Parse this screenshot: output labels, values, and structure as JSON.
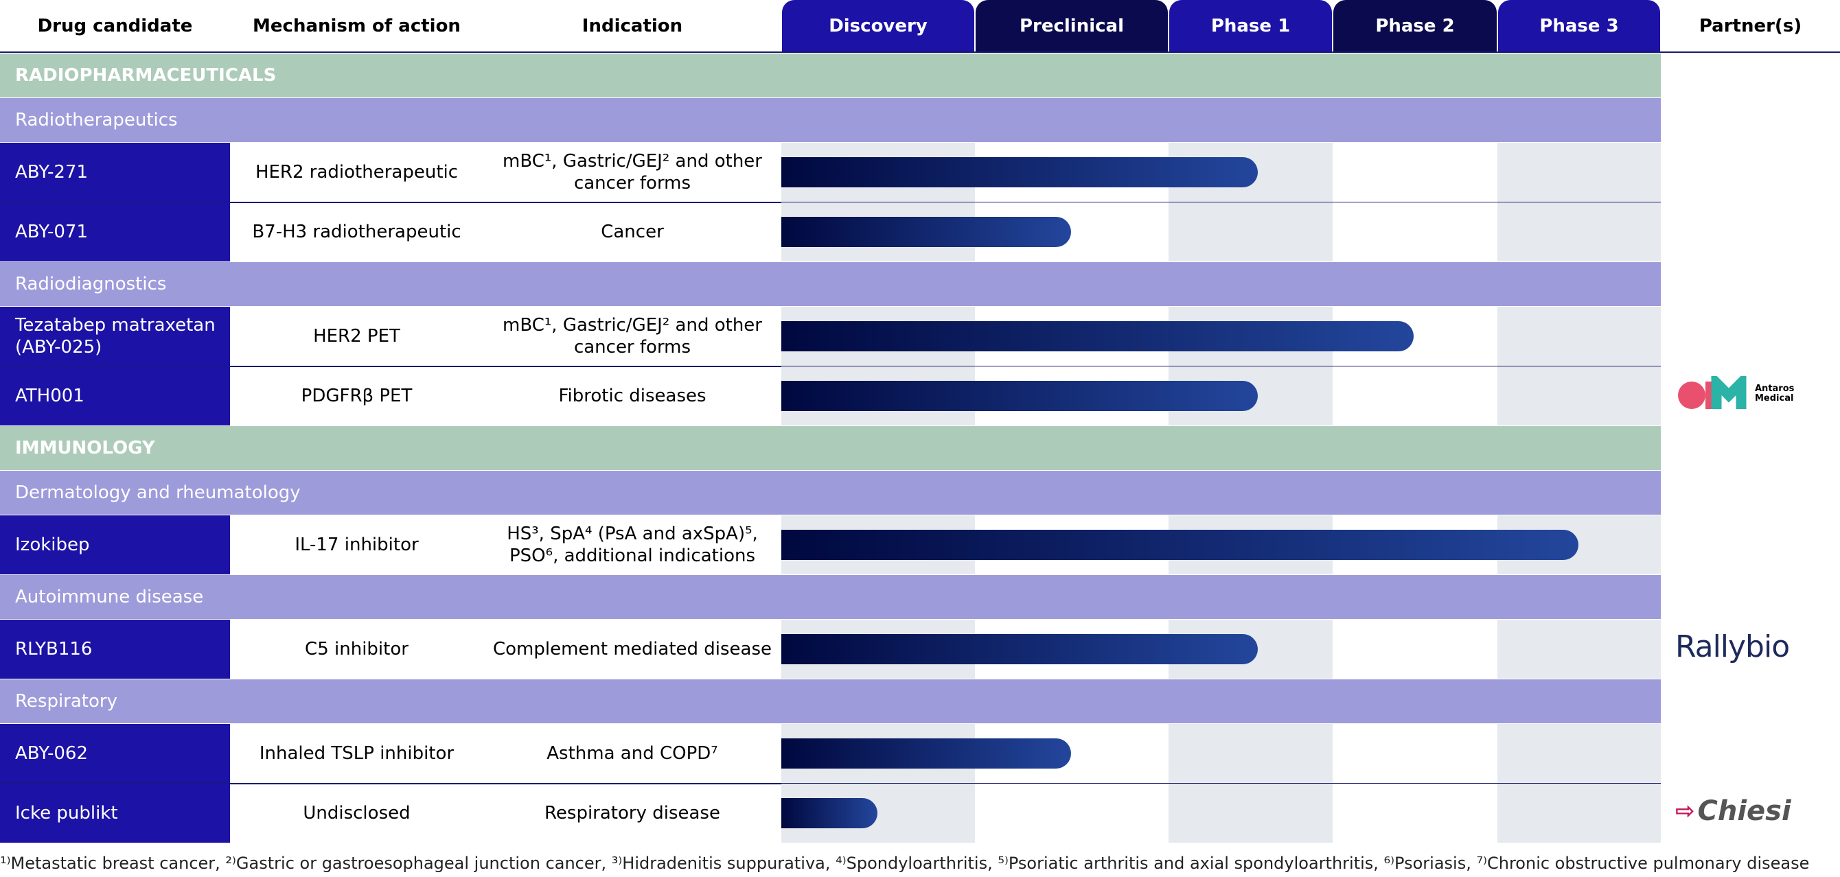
{
  "header": {
    "columns": [
      "Drug candidate",
      "Mechanism of action",
      "Indication",
      "Discovery",
      "Preclinical",
      "Phase 1",
      "Phase 2",
      "Phase 3",
      "Partner(s)"
    ]
  },
  "rows": [
    {
      "kind": "section",
      "label": "RADIOPHARMACEUTICALS"
    },
    {
      "kind": "group",
      "label": "Radiotherapeutics"
    },
    {
      "kind": "drug",
      "candidate": "ABY-271",
      "mechanism": "HER2 radiotherapeutic",
      "indication": "mBC¹, Gastric/GEJ² and other cancer forms"
    },
    {
      "kind": "drug",
      "candidate": "ABY-071",
      "mechanism": "B7-H3 radiotherapeutic",
      "indication": "Cancer"
    },
    {
      "kind": "group",
      "label": "Radiodiagnostics"
    },
    {
      "kind": "drug",
      "candidate": "Tezatabep matraxetan (ABY-025)",
      "mechanism": "HER2 PET",
      "indication": "mBC¹, Gastric/GEJ² and other cancer forms"
    },
    {
      "kind": "drug",
      "candidate": "ATH001",
      "mechanism": "PDGFRβ PET",
      "indication": "Fibrotic diseases"
    },
    {
      "kind": "section",
      "label": "IMMUNOLOGY"
    },
    {
      "kind": "group",
      "label": "Dermatology and rheumatology"
    },
    {
      "kind": "drug",
      "candidate": "Izokibep",
      "mechanism": "IL-17 inhibitor",
      "indication": "HS³, SpA⁴ (PsA and axSpA)⁵, PSO⁶, additional indications"
    },
    {
      "kind": "group",
      "label": "Autoimmune disease"
    },
    {
      "kind": "drug",
      "candidate": "RLYB116",
      "mechanism": "C5 inhibitor",
      "indication": "Complement mediated disease"
    },
    {
      "kind": "group",
      "label": "Respiratory"
    },
    {
      "kind": "drug",
      "candidate": "ABY-062",
      "mechanism": "Inhaled TSLP inhibitor",
      "indication": "Asthma and COPD⁷"
    },
    {
      "kind": "drug",
      "candidate": "Icke publikt",
      "mechanism": "Undisclosed",
      "indication": "Respiratory disease"
    }
  ],
  "partners": [
    "Antaros Medical",
    "Rallybio",
    "Chiesi"
  ],
  "footnote": "¹⁾Metastatic breast cancer, ²⁾Gastric or gastroesophageal junction cancer, ³⁾Hidradenitis suppurativa, ⁴⁾Spondyloarthritis, ⁵⁾Psoriatic arthritis and axial spondyloarthritis, ⁶⁾Psoriasis, ⁷⁾Chronic obstructive pulmonary disease"
}
